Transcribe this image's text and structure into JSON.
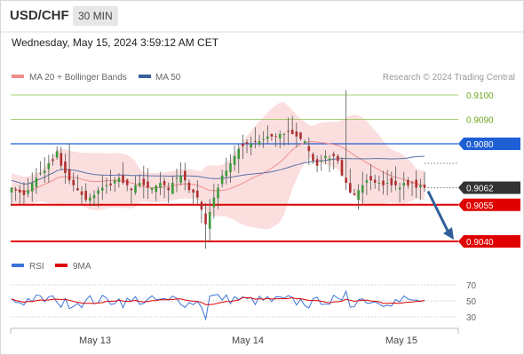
{
  "header": {
    "pair": "USD/CHF",
    "timeframe": "30 MIN",
    "datetime": "Wednesday, May 15, 2024 3:59:12 AM CET"
  },
  "credit": "Research © 2024 Trading Central",
  "chart_data": [
    {
      "type": "candlestick",
      "legend": [
        {
          "label": "MA 20 + Bollinger Bands",
          "color": "#f28c8c"
        },
        {
          "label": "MA 50",
          "color": "#3a5f9e"
        }
      ],
      "price_axis_range": [
        9.038,
        9.011
      ],
      "x_date_labels": [
        "May 13",
        "May 14",
        "May 15"
      ],
      "level_lines": [
        {
          "value": "0.9100",
          "kind": "target",
          "color": "#8dc14a",
          "style": "thin-label"
        },
        {
          "value": "0.9090",
          "kind": "target",
          "color": "#8dc14a",
          "style": "thin-label"
        },
        {
          "value": "0.9080",
          "kind": "resistance",
          "color": "#1f5fd6",
          "style": "box"
        },
        {
          "value": "0.9062",
          "kind": "last-price",
          "color": "#333333",
          "style": "box"
        },
        {
          "value": "0.9055",
          "kind": "pivot",
          "color": "#e00000",
          "style": "box"
        },
        {
          "value": "0.9040",
          "kind": "support",
          "color": "#e00000",
          "style": "box"
        }
      ],
      "forecast_arrow": {
        "from": 0.9062,
        "to": 0.904,
        "color": "#2f5f9a"
      },
      "candle_seed_close": [
        0.9062,
        0.9061,
        0.906,
        0.9059,
        0.9061,
        0.9064,
        0.9066,
        0.9068,
        0.9069,
        0.9072,
        0.9073,
        0.9077,
        0.9071,
        0.9068,
        0.9065,
        0.9063,
        0.9061,
        0.9059,
        0.9057,
        0.9058,
        0.9059,
        0.9061,
        0.9062,
        0.9063,
        0.9063,
        0.9065,
        0.9066,
        0.9064,
        0.9063,
        0.9061,
        0.9063,
        0.9064,
        0.9063,
        0.9062,
        0.9062,
        0.9063,
        0.9064,
        0.9063,
        0.9061,
        0.9064,
        0.9066,
        0.9067,
        0.9065,
        0.9061,
        0.906,
        0.9058,
        0.9053,
        0.9047,
        0.9052,
        0.9058,
        0.9062,
        0.9067,
        0.9069,
        0.9072,
        0.9075,
        0.9078,
        0.9079,
        0.908,
        0.908,
        0.9081,
        0.9081,
        0.9082,
        0.9083,
        0.9083,
        0.9083,
        0.9084,
        0.9084,
        0.9085,
        0.9084,
        0.9083,
        0.9082,
        0.9081,
        0.9077,
        0.9073,
        0.9071,
        0.9073,
        0.9075,
        0.9074,
        0.9075,
        0.9073,
        0.9067,
        0.9064,
        0.906,
        0.9059,
        0.9061,
        0.9063,
        0.9065,
        0.9065,
        0.9064,
        0.9064,
        0.9063,
        0.9064,
        0.9063,
        0.9063,
        0.9062,
        0.9064,
        0.9063,
        0.9064,
        0.9062,
        0.9063,
        0.9062
      ]
    },
    {
      "type": "line",
      "legend": [
        {
          "label": "RSI",
          "color": "#3a74d8"
        },
        {
          "label": "9MA",
          "color": "#e00000"
        }
      ],
      "y_ticks": [
        "70",
        "50",
        "30"
      ],
      "ylim": [
        22,
        78
      ]
    }
  ]
}
